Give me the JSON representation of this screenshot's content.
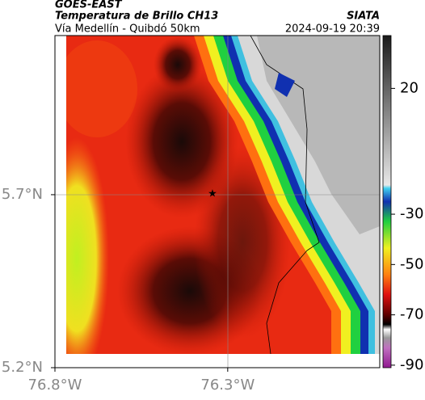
{
  "header": {
    "title": "GOES-EAST",
    "subtitle": "Temperatura de Brillo CH13",
    "route": "Vía Medellín - Quibdó 50km",
    "source": "SIATA",
    "timestamp": "2024-09-19 20:39"
  },
  "map": {
    "xlim": [
      -76.8,
      -75.86
    ],
    "ylim": [
      5.2,
      6.16
    ],
    "xticks": [
      {
        "value": -76.8,
        "label": "76.8°W"
      },
      {
        "value": -76.3,
        "label": "76.3°W"
      }
    ],
    "yticks": [
      {
        "value": 5.7,
        "label": "5.7°N"
      },
      {
        "value": 5.2,
        "label": "5.2°N"
      }
    ],
    "grid": [
      {
        "value": -76.3,
        "axis": "x"
      },
      {
        "value": 5.7,
        "axis": "y"
      }
    ]
  },
  "colorbar": {
    "lim": [
      -91,
      41
    ],
    "ticks": [
      20,
      -30,
      -50,
      -70,
      -90
    ]
  }
}
